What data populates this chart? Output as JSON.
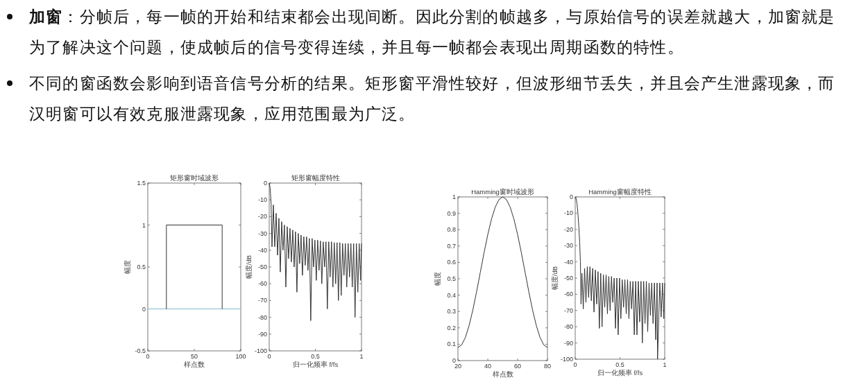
{
  "chart_data": [
    {
      "type": "other",
      "annotations": [
        "**加窗**：分帧后，每一帧的开始和结束都会出现间断。因此分割的帧越多，与原始信号的误差就越大，加窗就是为了解决这个问题，使成帧后的信号变得连续，并且每一帧都会表现出周期函数的特性。",
        "不同的窗函数会影响到语音信号分析的结果。矩形窗平滑性较好，但波形细节丢失，并且会产生泄露现象，而汉明窗可以有效克服泄露现象，应用范围最为广泛。"
      ]
    },
    {
      "type": "line",
      "title": "矩形窗时域波形",
      "xlabel": "样点数",
      "ylabel": "幅度",
      "xlim": [
        0,
        100
      ],
      "ylim": [
        -0.5,
        1.5
      ],
      "xticks": [
        0,
        50,
        100
      ],
      "yticks": [
        -0.5,
        0,
        0.5,
        1,
        1.5
      ],
      "series": [
        {
          "color": "#7fbcd2",
          "x": [
            0,
            100
          ],
          "values": [
            0,
            0
          ]
        },
        {
          "color": "#333333",
          "x": [
            20,
            20,
            80,
            80
          ],
          "values": [
            0,
            1,
            1,
            0
          ]
        }
      ]
    },
    {
      "type": "line",
      "title": "矩形窗幅度特性",
      "xlabel": "归一化频率 f/fs",
      "ylabel": "幅度/dB",
      "xlim": [
        0,
        1
      ],
      "ylim": [
        -100,
        0
      ],
      "xticks": [
        0,
        0.5,
        1
      ],
      "yticks": [
        -100,
        -90,
        -80,
        -70,
        -60,
        -50,
        -40,
        -30,
        -20,
        -10,
        0
      ],
      "series": [
        {
          "color": "#333333",
          "x": [
            0,
            0.01,
            0.02,
            0.03,
            0.045,
            0.06,
            0.075,
            0.09,
            0.105,
            0.12,
            0.135,
            0.15,
            0.165,
            0.18,
            0.195,
            0.21,
            0.225,
            0.24,
            0.255,
            0.27,
            0.285,
            0.3,
            0.315,
            0.33,
            0.345,
            0.36,
            0.375,
            0.39,
            0.405,
            0.42,
            0.435,
            0.45,
            0.465,
            0.48,
            0.495,
            0.51,
            0.525,
            0.54,
            0.555,
            0.57,
            0.585,
            0.6,
            0.615,
            0.63,
            0.645,
            0.66,
            0.675,
            0.69,
            0.705,
            0.72,
            0.735,
            0.75,
            0.765,
            0.78,
            0.795,
            0.81,
            0.825,
            0.84,
            0.855,
            0.87,
            0.885,
            0.9,
            0.915,
            0.93,
            0.945,
            0.96,
            0.975,
            0.99,
            1
          ],
          "values": [
            0,
            -3,
            -12,
            -38,
            -13,
            -38,
            -18,
            -43,
            -21,
            -53,
            -23,
            -40,
            -25,
            -62,
            -26,
            -45,
            -27,
            -47,
            -28,
            -50,
            -29,
            -65,
            -30,
            -48,
            -31,
            -55,
            -32,
            -49,
            -32,
            -52,
            -33,
            -82,
            -33,
            -50,
            -34,
            -58,
            -34,
            -52,
            -34.5,
            -60,
            -35,
            -50,
            -35,
            -75,
            -35,
            -56,
            -35,
            -62,
            -35.5,
            -60,
            -35.5,
            -70,
            -35.5,
            -67,
            -36,
            -55,
            -36,
            -62,
            -36,
            -56,
            -36,
            -62,
            -36,
            -80,
            -36,
            -65,
            -36,
            -58,
            -36
          ]
        }
      ]
    },
    {
      "type": "line",
      "title": "Hamming窗时域波形",
      "xlabel": "样点数",
      "ylabel": "幅度",
      "xlim": [
        20,
        80
      ],
      "ylim": [
        0,
        1
      ],
      "xticks": [
        20,
        40,
        60,
        80
      ],
      "yticks": [
        0,
        0.1,
        0.2,
        0.3,
        0.4,
        0.5,
        0.6,
        0.7,
        0.8,
        0.9,
        1
      ],
      "series": [
        {
          "color": "#333333",
          "x": [
            20,
            22.5,
            25,
            27.5,
            30,
            32.5,
            35,
            37.5,
            40,
            42.5,
            45,
            47.5,
            50,
            52.5,
            55,
            57.5,
            60,
            62.5,
            65,
            67.5,
            70,
            72.5,
            75,
            77.5,
            80
          ],
          "values": [
            0.08,
            0.096,
            0.142,
            0.215,
            0.31,
            0.421,
            0.54,
            0.659,
            0.77,
            0.865,
            0.938,
            0.984,
            1,
            0.984,
            0.938,
            0.865,
            0.77,
            0.659,
            0.54,
            0.421,
            0.31,
            0.215,
            0.142,
            0.096,
            0.08
          ]
        }
      ]
    },
    {
      "type": "line",
      "title": "Hamming窗幅度特性",
      "xlabel": "归一化频率 f/fs",
      "ylabel": "幅度/dB",
      "xlim": [
        0,
        1
      ],
      "ylim": [
        -100,
        0
      ],
      "xticks": [
        0,
        0.5,
        1
      ],
      "yticks": [
        -100,
        -90,
        -80,
        -70,
        -60,
        -50,
        -40,
        -30,
        -20,
        -10,
        0
      ],
      "series": [
        {
          "color": "#333333",
          "x": [
            0,
            0.01,
            0.02,
            0.03,
            0.04,
            0.05,
            0.058,
            0.065,
            0.075,
            0.09,
            0.105,
            0.12,
            0.135,
            0.15,
            0.165,
            0.18,
            0.195,
            0.21,
            0.225,
            0.24,
            0.255,
            0.27,
            0.285,
            0.3,
            0.315,
            0.33,
            0.345,
            0.36,
            0.375,
            0.39,
            0.405,
            0.42,
            0.435,
            0.45,
            0.465,
            0.48,
            0.495,
            0.51,
            0.525,
            0.54,
            0.555,
            0.57,
            0.585,
            0.6,
            0.615,
            0.63,
            0.645,
            0.66,
            0.675,
            0.69,
            0.705,
            0.72,
            0.735,
            0.75,
            0.765,
            0.78,
            0.795,
            0.81,
            0.825,
            0.84,
            0.855,
            0.87,
            0.885,
            0.9,
            0.915,
            0.92,
            0.945,
            0.96,
            0.975,
            0.99,
            1
          ],
          "values": [
            0,
            -1,
            -4,
            -10,
            -18,
            -28,
            -40,
            -66,
            -47,
            -69,
            -44,
            -65,
            -43,
            -62,
            -43,
            -64,
            -44,
            -71,
            -45,
            -66,
            -46,
            -81,
            -47,
            -80,
            -48,
            -68,
            -48,
            -72,
            -49,
            -70,
            -49,
            -65,
            -50,
            -81,
            -50,
            -85,
            -50,
            -75,
            -51,
            -68,
            -51,
            -72,
            -51,
            -75,
            -52,
            -69,
            -52,
            -85,
            -52,
            -85,
            -52,
            -77,
            -52,
            -90,
            -52,
            -78,
            -52,
            -83,
            -53,
            -73,
            -53,
            -78,
            -53,
            -88,
            -53,
            -100,
            -53,
            -74,
            -53,
            -75,
            -53
          ]
        }
      ]
    }
  ]
}
